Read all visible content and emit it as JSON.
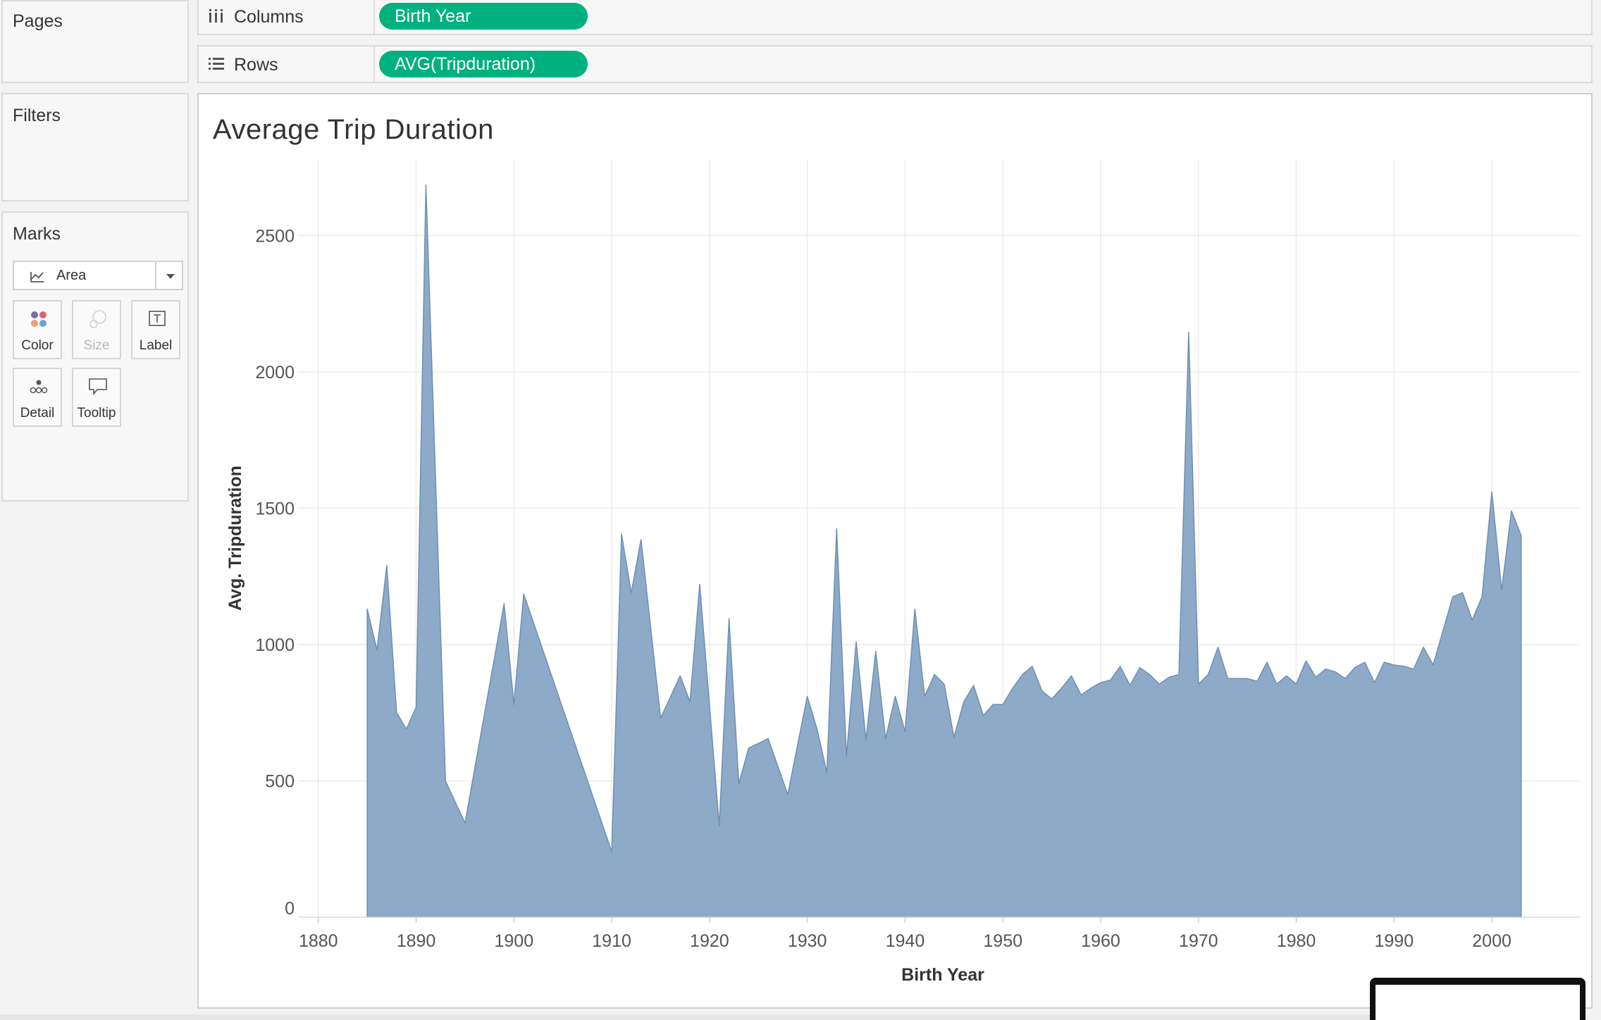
{
  "left_panels": {
    "pages_title": "Pages",
    "filters_title": "Filters",
    "marks_title": "Marks",
    "mark_type": "Area",
    "mark_buttons": [
      {
        "label": "Color",
        "icon": "color-dots-icon",
        "enabled": true
      },
      {
        "label": "Size",
        "icon": "size-circles-icon",
        "enabled": false
      },
      {
        "label": "Label",
        "icon": "label-text-icon",
        "enabled": true
      },
      {
        "label": "Detail",
        "icon": "detail-dots-icon",
        "enabled": true
      },
      {
        "label": "Tooltip",
        "icon": "tooltip-bubble-icon",
        "enabled": true
      }
    ]
  },
  "shelves": {
    "columns_label": "Columns",
    "columns_pill": "Birth Year",
    "rows_label": "Rows",
    "rows_pill": "AVG(Tripduration)",
    "pill_color": "#00b180"
  },
  "chart_data": {
    "type": "area",
    "title": "Average Trip Duration",
    "xlabel": "Birth Year",
    "ylabel": "Avg. Tripduration",
    "xlim": [
      1878,
      2009
    ],
    "ylim": [
      0,
      2780
    ],
    "xticks": [
      1880,
      1890,
      1900,
      1910,
      1920,
      1930,
      1940,
      1950,
      1960,
      1970,
      1980,
      1990,
      2000
    ],
    "yticks": [
      0,
      500,
      1000,
      1500,
      2000,
      2500
    ],
    "grid": true,
    "color": "#8dabc8",
    "line_color": "#6e8fb2",
    "x": [
      1885,
      1886,
      1887,
      1888,
      1889,
      1890,
      1891,
      1893,
      1895,
      1899,
      1900,
      1901,
      1910,
      1911,
      1912,
      1913,
      1915,
      1917,
      1918,
      1919,
      1921,
      1922,
      1923,
      1924,
      1926,
      1928,
      1930,
      1931,
      1932,
      1933,
      1934,
      1935,
      1936,
      1937,
      1938,
      1939,
      1940,
      1941,
      1942,
      1943,
      1944,
      1945,
      1946,
      1947,
      1948,
      1949,
      1950,
      1951,
      1952,
      1953,
      1954,
      1955,
      1956,
      1957,
      1958,
      1959,
      1960,
      1961,
      1962,
      1963,
      1964,
      1965,
      1966,
      1967,
      1968,
      1969,
      1970,
      1971,
      1972,
      1973,
      1974,
      1975,
      1976,
      1977,
      1978,
      1979,
      1980,
      1981,
      1982,
      1983,
      1984,
      1985,
      1986,
      1987,
      1988,
      1989,
      1990,
      1991,
      1992,
      1993,
      1994,
      1995,
      1996,
      1997,
      1998,
      1999,
      2000,
      2001,
      2002,
      2003
    ],
    "values": [
      1130,
      980,
      1290,
      750,
      690,
      770,
      2685,
      500,
      345,
      1150,
      780,
      1185,
      240,
      1405,
      1190,
      1385,
      730,
      885,
      790,
      1220,
      335,
      1095,
      490,
      620,
      655,
      450,
      810,
      690,
      530,
      1425,
      590,
      1010,
      650,
      975,
      655,
      810,
      680,
      1130,
      810,
      890,
      855,
      660,
      790,
      850,
      740,
      780,
      780,
      840,
      890,
      920,
      830,
      800,
      840,
      885,
      815,
      840,
      860,
      870,
      920,
      850,
      915,
      890,
      855,
      880,
      890,
      2145,
      855,
      890,
      990,
      875,
      875,
      875,
      865,
      935,
      855,
      885,
      855,
      940,
      880,
      910,
      900,
      875,
      915,
      935,
      860,
      935,
      925,
      920,
      910,
      990,
      925,
      1050,
      1175,
      1190,
      1090,
      1175,
      1560,
      1200,
      1490,
      1400
    ]
  }
}
